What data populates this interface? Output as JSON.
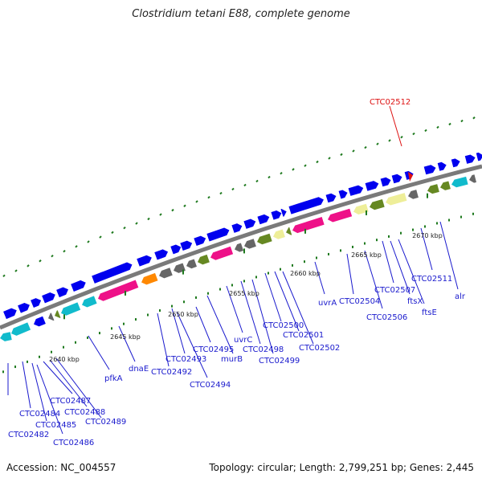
{
  "title": "Clostridium tetani E88, complete genome",
  "accession": "Accession: NC_004557",
  "summary": "Topology: circular; Length: 2,799,251 bp; Genes: 2,445",
  "highlight": {
    "label": "CTC02512",
    "color": "#dd1111"
  },
  "ruler_labels": [
    "2640 kbp",
    "2645 kbp",
    "2650 kbp",
    "2655 kbp",
    "2660 kbp",
    "2665 kbp",
    "2670 kbp"
  ],
  "gene_labels": [
    "CTC02482",
    "CTC02484",
    "CTC02485",
    "CTC02486",
    "CTC02487",
    "CTC02488",
    "CTC02489",
    "pfkA",
    "dnaE",
    "CTC02492",
    "CTC02493",
    "CTC02494",
    "CTC02495",
    "murB",
    "uvrC",
    "CTC02498",
    "CTC02499",
    "CTC02500",
    "CTC02501",
    "CTC02502",
    "uvrA",
    "CTC02504",
    "CTC02506",
    "CTC02507",
    "ftsX",
    "ftsE",
    "CTC02511",
    "alr"
  ],
  "colors": {
    "forward_gene": "#0000ee",
    "label_line": "#1a1acd",
    "dots": "#1f7a1f",
    "backbone": "#7a7a7a",
    "magenta": "#ee1188",
    "cyan": "#11bbcc",
    "olive": "#668822",
    "grey": "#666666",
    "yellow": "#eeee99",
    "orange": "#ff8800"
  }
}
